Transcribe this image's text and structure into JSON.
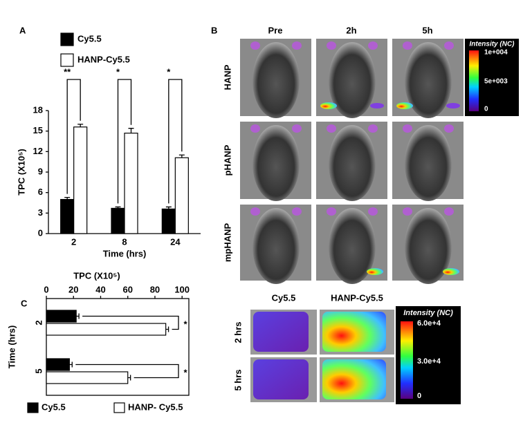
{
  "panel_labels": [
    "A",
    "B",
    "C"
  ],
  "chart_data": [
    {
      "type": "bar",
      "categories": [
        "2",
        "8",
        "24"
      ],
      "x_label": "Time (hrs)",
      "y_label": "TPC (X10⁵)",
      "ylim": [
        0,
        18
      ],
      "yticks": [
        0,
        3,
        6,
        9,
        12,
        15,
        18
      ],
      "grid": false,
      "legend": "top-left",
      "series": [
        {
          "name": "Cy5.5",
          "color": "#000000",
          "values": [
            5.0,
            3.7,
            3.6
          ],
          "errors": [
            0.3,
            0.2,
            0.3
          ]
        },
        {
          "name": "HANP-Cy5.5",
          "color": "#ffffff",
          "values": [
            15.6,
            14.7,
            11.1
          ],
          "errors": [
            0.4,
            0.7,
            0.4
          ]
        }
      ],
      "annotations": [
        "**",
        "*",
        "*"
      ]
    },
    {
      "type": "barh",
      "categories": [
        "2",
        "5"
      ],
      "x_label": "TPC (X10⁵)",
      "y_label": "Time (hrs)",
      "xlim": [
        0,
        105
      ],
      "xticks": [
        0,
        20,
        40,
        60,
        80,
        100
      ],
      "grid": false,
      "legend": "bottom",
      "series": [
        {
          "name": "Cy5.5",
          "color": "#000000",
          "values": [
            22,
            17
          ],
          "errors": [
            2,
            2
          ]
        },
        {
          "name": "HANP- Cy5.5",
          "color": "#ffffff",
          "values": [
            88,
            60
          ],
          "errors": [
            2,
            2
          ]
        }
      ],
      "annotations": [
        "*",
        "*"
      ]
    }
  ],
  "imaging_b": {
    "columns": [
      "Pre",
      "2h",
      "5h"
    ],
    "rows": [
      "HANP",
      "pHANP",
      "mpHANP"
    ],
    "colorbar": {
      "title": "Intensity (NC)",
      "labels": [
        "1e+004",
        "5e+003",
        "0"
      ]
    }
  },
  "imaging_c": {
    "columns": [
      "Cy5.5",
      "HANP-Cy5.5"
    ],
    "rows": [
      "2 hrs",
      "5 hrs"
    ],
    "colorbar": {
      "title": "Intensity (NC)",
      "labels": [
        "6.0e+4",
        "3.0e+4",
        "0"
      ]
    }
  }
}
